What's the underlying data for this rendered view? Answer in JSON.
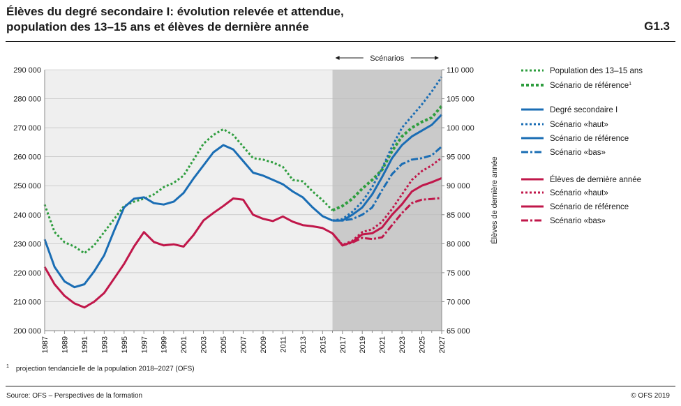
{
  "title_lines": [
    "Élèves du degré secondaire I: évolution relevée et attendue,",
    "population des 13–15 ans et élèves de dernière année"
  ],
  "graphic_id": "G1.3",
  "footnote": {
    "marker": "1",
    "text": "projection tendancielle de la population 2018–2027 (OFS)"
  },
  "source": "Source: OFS – Perspectives de la formation",
  "copyright": "© OFS 2019",
  "colors": {
    "background_observed": "#efefef",
    "background_scenario": "#cacaca",
    "population": "#2e9d3e",
    "secondary": "#1a6db4",
    "final_year": "#c0174a",
    "axis": "#8a8a8a",
    "text": "#1a1a1a"
  },
  "chart_data": {
    "type": "line",
    "x_start": 1987,
    "x_end": 2027,
    "x_tick_labels": [
      "1987",
      "1989",
      "1991",
      "1993",
      "1995",
      "1997",
      "1999",
      "2001",
      "2003",
      "2005",
      "2007",
      "2009",
      "2011",
      "2013",
      "2015",
      "2017",
      "2019",
      "2021",
      "2023",
      "2025",
      "2027"
    ],
    "ylim_left": [
      200000,
      290000
    ],
    "y_left_ticks": [
      "200 000",
      "210 000",
      "220 000",
      "230 000",
      "240 000",
      "250 000",
      "260 000",
      "270 000",
      "280 000",
      "290 000"
    ],
    "ylim_right": [
      65000,
      110000
    ],
    "y_right_ticks": [
      "65 000",
      "70 000",
      "75 000",
      "80 000",
      "85 000",
      "90 000",
      "95 000",
      "100 000",
      "105 000",
      "110 000"
    ],
    "ylabel_right": "Élèves de dernière année",
    "scenario_band": {
      "label": "Scénarios",
      "from": 2016,
      "to": 2027
    },
    "grid": true,
    "legend_position": "right",
    "series": [
      {
        "name": "Population des 13–15 ans",
        "axis": "left",
        "color_key": "population",
        "style": "dotted",
        "x": [
          1987,
          1988,
          1989,
          1990,
          1991,
          1992,
          1993,
          1994,
          1995,
          1996,
          1997,
          1998,
          1999,
          2000,
          2001,
          2002,
          2003,
          2004,
          2005,
          2006,
          2007,
          2008,
          2009,
          2010,
          2011,
          2012,
          2013,
          2014,
          2015,
          2016
        ],
        "values": [
          243500,
          234000,
          230500,
          229000,
          226700,
          229500,
          234000,
          238500,
          243000,
          244500,
          245500,
          247000,
          249500,
          251000,
          253500,
          259000,
          264500,
          267500,
          269500,
          267500,
          263500,
          259500,
          259000,
          258000,
          256500,
          252000,
          251500,
          248000,
          245000,
          241500
        ]
      },
      {
        "name": "Scénario de référence",
        "superscript": "1",
        "axis": "left",
        "color_key": "population",
        "style": "dotted-bold",
        "x": [
          2016,
          2017,
          2018,
          2019,
          2020,
          2021,
          2022,
          2023,
          2024,
          2025,
          2026,
          2027
        ],
        "values": [
          241500,
          243000,
          245500,
          249000,
          252000,
          255500,
          262000,
          267000,
          270000,
          272000,
          273500,
          277500
        ]
      },
      {
        "name": "Degré secondaire I",
        "axis": "left",
        "color_key": "secondary",
        "style": "solid",
        "x": [
          1987,
          1988,
          1989,
          1990,
          1991,
          1992,
          1993,
          1994,
          1995,
          1996,
          1997,
          1998,
          1999,
          2000,
          2001,
          2002,
          2003,
          2004,
          2005,
          2006,
          2007,
          2008,
          2009,
          2010,
          2011,
          2012,
          2013,
          2014,
          2015,
          2016
        ],
        "values": [
          231500,
          222000,
          217000,
          215000,
          216000,
          220500,
          226000,
          234500,
          242500,
          245500,
          246000,
          244000,
          243500,
          244500,
          247500,
          252500,
          257000,
          261500,
          264000,
          262500,
          258500,
          254500,
          253500,
          252000,
          250500,
          248000,
          246000,
          242500,
          239500,
          238000
        ]
      },
      {
        "name": "Scénario «haut»",
        "axis": "left",
        "color_key": "secondary",
        "style": "dotted",
        "x": [
          2016,
          2017,
          2018,
          2019,
          2020,
          2021,
          2022,
          2023,
          2024,
          2025,
          2026,
          2027
        ],
        "values": [
          238000,
          238500,
          241000,
          244500,
          249500,
          256000,
          263500,
          270000,
          274000,
          278000,
          282500,
          287500
        ]
      },
      {
        "name": "Scénario de référence",
        "axis": "left",
        "color_key": "secondary",
        "style": "solid",
        "x": [
          2016,
          2017,
          2018,
          2019,
          2020,
          2021,
          2022,
          2023,
          2024,
          2025,
          2026,
          2027
        ],
        "values": [
          238000,
          238000,
          240000,
          242500,
          247000,
          253000,
          259500,
          264000,
          267000,
          269000,
          271000,
          274500
        ]
      },
      {
        "name": "Scénario «bas»",
        "axis": "left",
        "color_key": "secondary",
        "style": "dashdot",
        "x": [
          2016,
          2017,
          2018,
          2019,
          2020,
          2021,
          2022,
          2023,
          2024,
          2025,
          2026,
          2027
        ],
        "values": [
          238000,
          238000,
          238500,
          240000,
          242500,
          248500,
          254000,
          257500,
          259000,
          259500,
          260500,
          263500
        ]
      },
      {
        "name": "Élèves de dernière année",
        "axis": "right",
        "color_key": "final_year",
        "style": "solid",
        "x": [
          1987,
          1988,
          1989,
          1990,
          1991,
          1992,
          1993,
          1994,
          1995,
          1996,
          1997,
          1998,
          1999,
          2000,
          2001,
          2002,
          2003,
          2004,
          2005,
          2006,
          2007,
          2008,
          2009,
          2010,
          2011,
          2012,
          2013,
          2014,
          2015,
          2016
        ],
        "values": [
          76000,
          73000,
          71000,
          69700,
          69000,
          70000,
          71500,
          74000,
          76500,
          79500,
          82000,
          80300,
          79700,
          79900,
          79500,
          81500,
          84000,
          85300,
          86500,
          87800,
          87600,
          85000,
          84300,
          83900,
          84700,
          83800,
          83200,
          83000,
          82700,
          81800
        ]
      },
      {
        "name": "Scénario «haut»",
        "axis": "right",
        "color_key": "final_year",
        "style": "dotted",
        "x": [
          2016,
          2017,
          2018,
          2019,
          2020,
          2021,
          2022,
          2023,
          2024,
          2025,
          2026,
          2027
        ],
        "values": [
          81800,
          79800,
          80500,
          82000,
          82500,
          83800,
          86000,
          88500,
          91000,
          92500,
          93500,
          94800
        ]
      },
      {
        "name": "Scénario de référence",
        "axis": "right",
        "color_key": "final_year",
        "style": "solid",
        "x": [
          2016,
          2017,
          2018,
          2019,
          2020,
          2021,
          2022,
          2023,
          2024,
          2025,
          2026,
          2027
        ],
        "values": [
          81800,
          79700,
          80300,
          81600,
          81800,
          82800,
          85000,
          86800,
          89000,
          90000,
          90600,
          91300
        ]
      },
      {
        "name": "Scénario «bas»",
        "axis": "right",
        "color_key": "final_year",
        "style": "dashdot",
        "x": [
          2016,
          2017,
          2018,
          2019,
          2020,
          2021,
          2022,
          2023,
          2024,
          2025,
          2026,
          2027
        ],
        "values": [
          81800,
          79700,
          80200,
          81000,
          80800,
          81100,
          83200,
          85300,
          87000,
          87600,
          87700,
          87900
        ]
      }
    ]
  }
}
